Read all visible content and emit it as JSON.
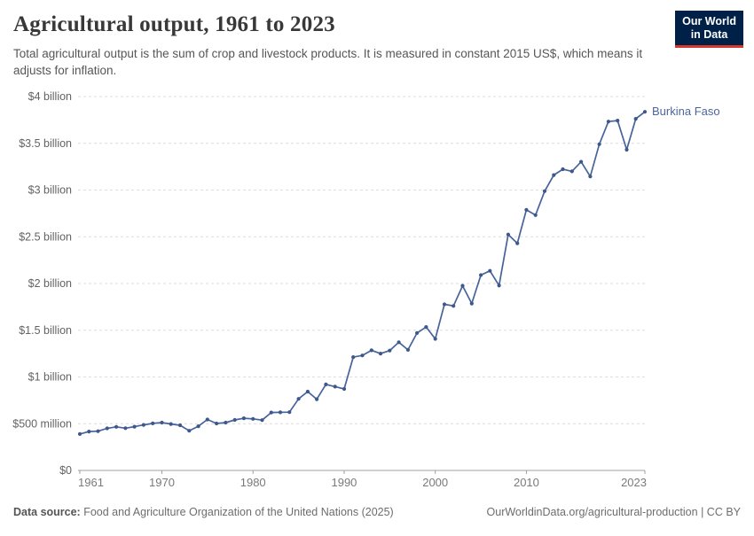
{
  "header": {
    "title": "Agricultural output, 1961 to 2023",
    "subtitle": "Total agricultural output is the sum of crop and livestock products. It is measured in constant 2015 US$, which means it adjusts for inflation.",
    "logo_line1": "Our World",
    "logo_line2": "in Data"
  },
  "chart_data": {
    "type": "line",
    "title": "Agricultural output, 1961 to 2023",
    "series_label": "Burkina Faso",
    "unit": "constant 2015 US$, millions",
    "grid": true,
    "legend_position": "end-of-line",
    "ylim": [
      0,
      4000
    ],
    "xlim": [
      1961,
      2023
    ],
    "x": [
      1961,
      1962,
      1963,
      1964,
      1965,
      1966,
      1967,
      1968,
      1969,
      1970,
      1971,
      1972,
      1973,
      1974,
      1975,
      1976,
      1977,
      1978,
      1979,
      1980,
      1981,
      1982,
      1983,
      1984,
      1985,
      1986,
      1987,
      1988,
      1989,
      1990,
      1991,
      1992,
      1993,
      1994,
      1995,
      1996,
      1997,
      1998,
      1999,
      2000,
      2001,
      2002,
      2003,
      2004,
      2005,
      2006,
      2007,
      2008,
      2009,
      2010,
      2011,
      2012,
      2013,
      2014,
      2015,
      2016,
      2017,
      2018,
      2019,
      2020,
      2021,
      2022,
      2023
    ],
    "values": [
      390,
      416,
      420,
      450,
      466,
      452,
      468,
      487,
      503,
      512,
      497,
      483,
      425,
      473,
      545,
      502,
      512,
      540,
      558,
      552,
      538,
      620,
      622,
      624,
      766,
      844,
      762,
      920,
      897,
      872,
      1212,
      1230,
      1285,
      1250,
      1282,
      1372,
      1290,
      1470,
      1535,
      1408,
      1777,
      1760,
      1975,
      1786,
      2090,
      2136,
      1978,
      2524,
      2430,
      2788,
      2732,
      2988,
      3160,
      3223,
      3200,
      3302,
      3145,
      3490,
      3733,
      3743,
      3431,
      3762,
      3837
    ],
    "yticks": [
      {
        "v": 4000,
        "label": "$4 billion"
      },
      {
        "v": 3500,
        "label": "$3.5 billion"
      },
      {
        "v": 3000,
        "label": "$3 billion"
      },
      {
        "v": 2500,
        "label": "$2.5 billion"
      },
      {
        "v": 2000,
        "label": "$2 billion"
      },
      {
        "v": 1500,
        "label": "$1.5 billion"
      },
      {
        "v": 1000,
        "label": "$1 billion"
      },
      {
        "v": 500,
        "label": "$500 million"
      },
      {
        "v": 0,
        "label": "$0"
      }
    ],
    "xticks": [
      {
        "year": 1961,
        "label": "1961",
        "align": "start"
      },
      {
        "year": 1970,
        "label": "1970",
        "align": "middle"
      },
      {
        "year": 1980,
        "label": "1980",
        "align": "middle"
      },
      {
        "year": 1990,
        "label": "1990",
        "align": "middle"
      },
      {
        "year": 2000,
        "label": "2000",
        "align": "middle"
      },
      {
        "year": 2010,
        "label": "2010",
        "align": "middle"
      },
      {
        "year": 2023,
        "label": "2023",
        "align": "end"
      }
    ]
  },
  "colors": {
    "line": "#46639b",
    "marker": "#3d5889",
    "grid": "#dcdcdc",
    "axis": "#a0a0a0",
    "logo_bg": "#002147",
    "logo_accent": "#d7382b",
    "series_label": "#4c669c"
  },
  "footer": {
    "datasource_label": "Data source:",
    "datasource_text": " Food and Agriculture Organization of the United Nations (2025)",
    "link": "OurWorldinData.org/agricultural-production",
    "separator": " | ",
    "license": "CC BY"
  }
}
